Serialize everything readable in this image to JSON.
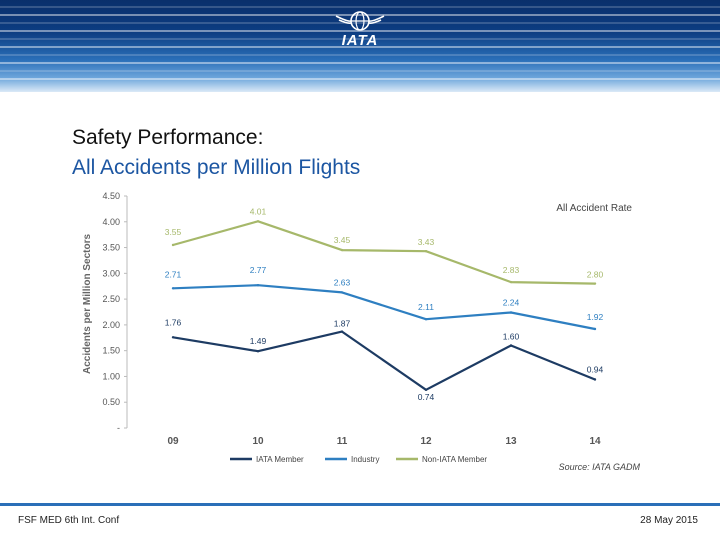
{
  "header": {
    "logo_text": "IATA"
  },
  "slide": {
    "title_line1": "Safety Performance:",
    "title_line2": "All Accidents per Million Flights"
  },
  "footer": {
    "left": "FSF MED 6th Int. Conf",
    "right": "28 May 2015"
  },
  "colors": {
    "iata": "#1d3b63",
    "industry": "#2e7fc1",
    "non_iata": "#a6b86a",
    "title_blue": "#1c56a2"
  },
  "chart_data": {
    "type": "line",
    "title": "All Accident Rate",
    "source": "Source: IATA GADM",
    "xlabel": "",
    "ylabel": "Accidents per Million Sectors",
    "categories": [
      "09",
      "10",
      "11",
      "12",
      "13",
      "14"
    ],
    "y_ticks": [
      "4.50",
      "4.00",
      "3.50",
      "3.00",
      "2.50",
      "2.00",
      "1.50",
      "1.00",
      "0.50",
      "-"
    ],
    "ylim": [
      0,
      4.5
    ],
    "series": [
      {
        "name": "IATA Member",
        "color": "#1d3b63",
        "values": [
          1.76,
          1.49,
          1.87,
          0.74,
          1.6,
          0.94
        ],
        "labels": [
          "1.76",
          "1.49",
          "1.87",
          "0.74",
          "1.60",
          "0.94"
        ]
      },
      {
        "name": "Industry",
        "color": "#2e7fc1",
        "values": [
          2.71,
          2.77,
          2.63,
          2.11,
          2.24,
          1.92
        ],
        "labels": [
          "2.71",
          "2.77",
          "2.63",
          "2.11",
          "2.24",
          "1.92"
        ]
      },
      {
        "name": "Non-IATA Member",
        "color": "#a6b86a",
        "values": [
          3.55,
          4.01,
          3.45,
          3.43,
          2.83,
          2.8
        ],
        "labels": [
          "3.55",
          "4.01",
          "3.45",
          "3.43",
          "2.83",
          "2.80"
        ]
      }
    ]
  }
}
